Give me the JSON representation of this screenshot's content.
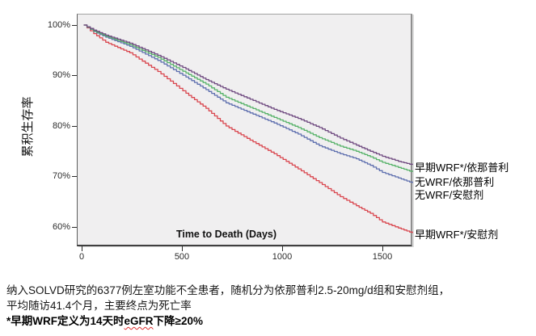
{
  "figure": {
    "y_axis": {
      "title": "累积生存率",
      "ticks": [
        "100%",
        "90%",
        "80%",
        "70%",
        "60%"
      ],
      "tick_values": [
        100,
        90,
        80,
        70,
        60
      ]
    },
    "x_axis": {
      "title": "Time to Death (Days)",
      "ticks": [
        "0",
        "500",
        "1000",
        "1500"
      ],
      "tick_values": [
        0,
        500,
        1000,
        1500
      ]
    }
  },
  "chart_data": {
    "type": "line",
    "subtype": "kaplan-meier-survival",
    "title": "",
    "xlabel": "Time to Death (Days)",
    "ylabel": "累积生存率",
    "xlim": [
      0,
      1650
    ],
    "ylim": [
      60,
      100
    ],
    "grid": false,
    "legend_position": "right-outside",
    "series": [
      {
        "id": "early-wrf-enalapril",
        "name": "早期WRF*/依那普利",
        "color": "#6f4a80",
        "points": [
          [
            10,
            100
          ],
          [
            60,
            99.0
          ],
          [
            120,
            98.0
          ],
          [
            240,
            96.4
          ],
          [
            380,
            94.0
          ],
          [
            520,
            91.3
          ],
          [
            620,
            89.2
          ],
          [
            720,
            87.3
          ],
          [
            840,
            85.3
          ],
          [
            960,
            83.3
          ],
          [
            1080,
            81.5
          ],
          [
            1185,
            79.7
          ],
          [
            1290,
            77.6
          ],
          [
            1370,
            76.2
          ],
          [
            1440,
            75.0
          ],
          [
            1500,
            74.0
          ],
          [
            1580,
            73.0
          ],
          [
            1650,
            72.3
          ]
        ]
      },
      {
        "id": "no-wrf-enalapril",
        "name": "无WRF/依那普利",
        "color": "#57b269",
        "points": [
          [
            10,
            100
          ],
          [
            60,
            98.8
          ],
          [
            120,
            97.8
          ],
          [
            240,
            96.1
          ],
          [
            380,
            93.6
          ],
          [
            520,
            90.5
          ],
          [
            620,
            88.3
          ],
          [
            720,
            85.7
          ],
          [
            840,
            83.7
          ],
          [
            960,
            81.7
          ],
          [
            1080,
            79.7
          ],
          [
            1185,
            77.7
          ],
          [
            1290,
            76.0
          ],
          [
            1370,
            75.0
          ],
          [
            1440,
            73.9
          ],
          [
            1500,
            72.8
          ],
          [
            1580,
            71.8
          ],
          [
            1650,
            70.9
          ]
        ]
      },
      {
        "id": "no-wrf-placebo",
        "name": "无WRF/安慰剂",
        "color": "#5e6fae",
        "points": [
          [
            10,
            100
          ],
          [
            60,
            98.7
          ],
          [
            120,
            97.6
          ],
          [
            240,
            95.8
          ],
          [
            380,
            93.0
          ],
          [
            520,
            89.7
          ],
          [
            620,
            87.2
          ],
          [
            720,
            84.6
          ],
          [
            840,
            82.6
          ],
          [
            960,
            80.6
          ],
          [
            1080,
            78.4
          ],
          [
            1185,
            76.1
          ],
          [
            1290,
            74.5
          ],
          [
            1370,
            73.5
          ],
          [
            1440,
            72.2
          ],
          [
            1500,
            70.8
          ],
          [
            1580,
            69.7
          ],
          [
            1650,
            68.7
          ]
        ]
      },
      {
        "id": "early-wrf-placebo",
        "name": "早期WRF*/安慰剂",
        "color": "#d9464e",
        "points": [
          [
            10,
            100
          ],
          [
            60,
            98.3
          ],
          [
            120,
            96.6
          ],
          [
            240,
            94.5
          ],
          [
            380,
            90.8
          ],
          [
            520,
            86.5
          ],
          [
            620,
            83.5
          ],
          [
            720,
            80.0
          ],
          [
            840,
            77.2
          ],
          [
            960,
            74.5
          ],
          [
            1080,
            71.5
          ],
          [
            1185,
            68.8
          ],
          [
            1290,
            66.0
          ],
          [
            1370,
            64.2
          ],
          [
            1440,
            62.7
          ],
          [
            1500,
            61.0
          ],
          [
            1580,
            59.8
          ],
          [
            1650,
            58.8
          ]
        ]
      }
    ]
  },
  "caption": {
    "line1": "纳入SOLVD研究的6377例左室功能不全患者，随机分为依那普利2.5-20mg/d组和安慰剂组，",
    "line2": "平均随访41.4个月，主要终点为死亡率",
    "line3": {
      "prefix": "*早期WRF定义为14天时",
      "highlight": "eGFR",
      "suffix": "下降≥20%"
    }
  }
}
